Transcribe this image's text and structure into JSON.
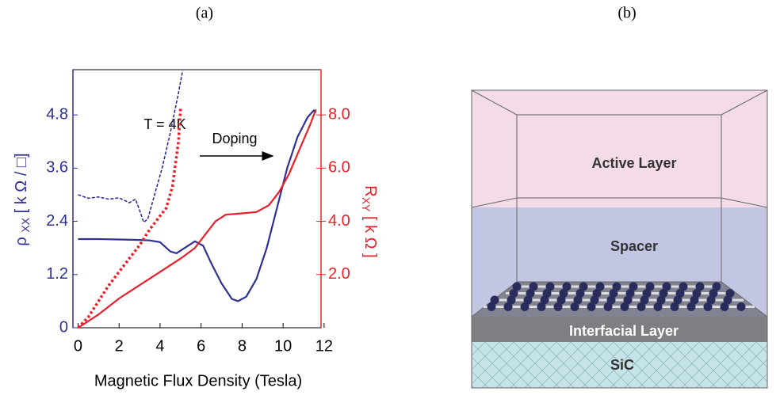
{
  "panel_labels": [
    "(a)",
    "(b)"
  ],
  "chart_data": {
    "type": "line",
    "xlabel": "Magnetic Flux Density (Tesla)",
    "ylabel": {
      "symbol": "ρ",
      "subscript": "XX",
      "unit": "[ k Ω / □]"
    },
    "y2label": {
      "symbol": "R",
      "subscript": "XY",
      "unit": "[ k Ω ]"
    },
    "annotations": [
      "T = 4K",
      "Doping"
    ],
    "xlim": [
      -0.25,
      11.85
    ],
    "xticks": [
      0,
      2,
      4,
      6,
      8,
      10,
      12
    ],
    "ylim": [
      0,
      5.82
    ],
    "yticks": [
      0,
      1.2,
      2.4,
      3.6,
      4.8
    ],
    "y2lim": [
      0,
      9.7
    ],
    "y2ticks": [
      {
        "value": 2,
        "label": "2.0"
      },
      {
        "value": 4,
        "label": "4.0"
      },
      {
        "value": 6,
        "label": "6.0"
      },
      {
        "value": 8,
        "label": "8.0"
      }
    ],
    "ycolor": "#2e3192",
    "y2color": "#e8202a",
    "series": [
      {
        "color": "#2e3192",
        "dash": "solid",
        "axis": "y",
        "x": [
          0,
          1,
          2,
          3,
          3.5,
          4,
          4.5,
          4.8,
          5.2,
          5.7,
          6.1,
          6.5,
          7,
          7.5,
          7.8,
          8.2,
          8.7,
          9.2,
          9.7,
          10.2,
          10.7,
          11.2,
          11.5,
          11.6
        ],
        "values": [
          2.0,
          2.0,
          1.99,
          1.98,
          1.97,
          1.93,
          1.72,
          1.68,
          1.8,
          1.95,
          1.85,
          1.45,
          1.0,
          0.65,
          0.6,
          0.7,
          1.1,
          1.8,
          2.7,
          3.6,
          4.3,
          4.75,
          4.9,
          4.85
        ]
      },
      {
        "color": "#2e3192",
        "dash": "dashed",
        "axis": "y",
        "x": [
          0,
          0.5,
          1,
          1.5,
          2,
          2.5,
          2.8,
          3.0,
          3.2,
          3.4,
          3.7,
          4.1,
          4.5,
          4.9,
          5.1
        ],
        "values": [
          3.0,
          2.92,
          2.95,
          2.9,
          2.93,
          2.82,
          2.9,
          2.65,
          2.38,
          2.45,
          2.95,
          3.6,
          4.4,
          5.3,
          5.8
        ]
      },
      {
        "color": "#e8202a",
        "dash": "solid",
        "axis": "y2",
        "x": [
          0,
          1,
          2,
          3,
          4,
          5,
          5.7,
          6.2,
          6.7,
          7.2,
          8,
          8.7,
          9.3,
          9.8,
          10.3,
          10.8,
          11.3,
          11.6
        ],
        "values": [
          0,
          0.5,
          1.1,
          1.6,
          2.1,
          2.6,
          3.0,
          3.5,
          4.0,
          4.25,
          4.3,
          4.35,
          4.6,
          5.1,
          5.8,
          6.7,
          7.6,
          8.2
        ]
      },
      {
        "color": "#e8202a",
        "dash": "dotted",
        "axis": "y2",
        "x": [
          0,
          0.5,
          1,
          1.5,
          2,
          2.5,
          3,
          3.5,
          4,
          4.3,
          4.6,
          4.9,
          5.0
        ],
        "values": [
          0,
          0.4,
          1.0,
          1.6,
          2.1,
          2.6,
          3.1,
          3.7,
          4.2,
          4.5,
          5.3,
          7.0,
          8.3
        ]
      }
    ]
  },
  "diagram": {
    "layers": [
      "Active Layer",
      "Spacer",
      "Interfacial Layer",
      "SiC"
    ]
  }
}
